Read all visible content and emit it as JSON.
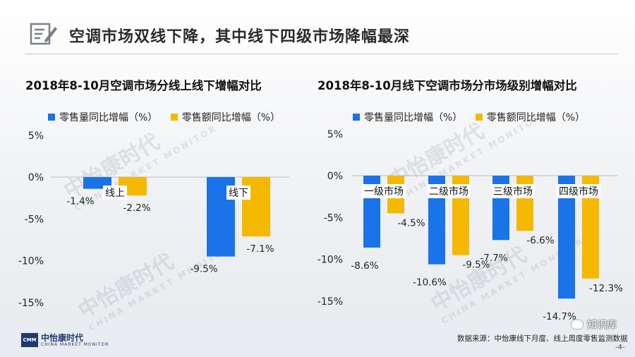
{
  "page": {
    "title": "空调市场双线下降，其中线下四级市场降幅最深",
    "source": "数据来源：中怡康线下月度、线上周度零售监测数据",
    "wechat": "知识库",
    "page_number": "-4-",
    "logo": {
      "name": "中怡康时代",
      "sub": "CHINA MARKET MONITOR",
      "badge": "CMM"
    },
    "watermark": {
      "name": "中怡康时代",
      "sub": "CHINA MARKET MONITOR"
    }
  },
  "legend_labels": {
    "volume": "零售量同比增幅（%）",
    "amount": "零售额同比增幅（%）"
  },
  "colors": {
    "volume": "#1a73e8",
    "amount": "#f5b800",
    "axis": "#b7bcc4",
    "title": "#2b2b2b"
  },
  "chart_data": [
    {
      "type": "bar",
      "title": "2018年8-10月空调市场分线上线下增幅对比",
      "categories": [
        "线上",
        "线下"
      ],
      "series": [
        {
          "name": "零售量同比增幅（%）",
          "values": [
            -1.4,
            -9.5
          ]
        },
        {
          "name": "零售额同比增幅（%）",
          "values": [
            -2.2,
            -7.1
          ]
        }
      ],
      "data_labels": [
        [
          "-1.4%",
          "-9.5%"
        ],
        [
          "-2.2%",
          "-7.1%"
        ]
      ],
      "yticks": [
        5,
        0,
        -5,
        -10,
        -15
      ],
      "ytick_labels": [
        "5%",
        "0%",
        "-5%",
        "-10%",
        "-15%"
      ],
      "ylim": [
        -15,
        5
      ],
      "grid": false,
      "legend_position": "top-left"
    },
    {
      "type": "bar",
      "title": "2018年8-10月线下空调市场分市场级别增幅对比",
      "categories": [
        "一级市场",
        "二级市场",
        "三级市场",
        "四级市场"
      ],
      "series": [
        {
          "name": "零售量同比增幅（%）",
          "values": [
            -8.6,
            -10.6,
            -7.7,
            -14.7
          ]
        },
        {
          "name": "零售额同比增幅（%）",
          "values": [
            -4.5,
            -9.5,
            -6.6,
            -12.3
          ]
        }
      ],
      "data_labels": [
        [
          "-8.6%",
          "-10.6%",
          "-7.7%",
          "-14.7%"
        ],
        [
          "-4.5%",
          "-9.5%",
          "-6.6%",
          "-12.3%"
        ]
      ],
      "yticks": [
        5,
        0,
        -5,
        -10,
        -15
      ],
      "ytick_labels": [
        "5%",
        "0%",
        "-5%",
        "-10%",
        "-15%"
      ],
      "ylim": [
        -15,
        5
      ],
      "grid": false,
      "legend_position": "top-left"
    }
  ]
}
